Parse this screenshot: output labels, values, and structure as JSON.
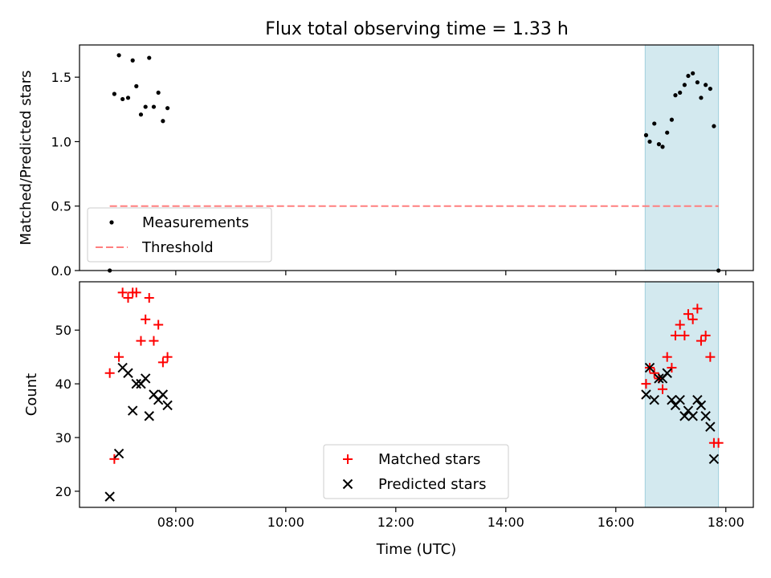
{
  "figure": {
    "title": "Flux total observing time = 1.33 h"
  },
  "chart_data": [
    {
      "type": "scatter",
      "panel": "top",
      "ylabel": "Matched/Predicted stars",
      "xlabel": "",
      "xlim": [
        "06:15",
        "18:30"
      ],
      "ylim": [
        0,
        1.75
      ],
      "xticks": [
        "08:00",
        "10:00",
        "12:00",
        "14:00",
        "16:00",
        "18:00"
      ],
      "xticklabels_visible": false,
      "yticks": [
        "0.0",
        "0.5",
        "1.0",
        "1.5"
      ],
      "grid": false,
      "legend_position": "lower-left",
      "highlight_span": {
        "x": [
          "16:32",
          "17:52"
        ],
        "color": "#d3e9ef"
      },
      "series": [
        {
          "name": "Measurements",
          "marker": "dot",
          "color": "#000000",
          "points": [
            {
              "x": "06:48",
              "y": 0.0
            },
            {
              "x": "06:53",
              "y": 1.37
            },
            {
              "x": "06:58",
              "y": 1.67
            },
            {
              "x": "07:02",
              "y": 1.33
            },
            {
              "x": "07:08",
              "y": 1.34
            },
            {
              "x": "07:13",
              "y": 1.63
            },
            {
              "x": "07:17",
              "y": 1.43
            },
            {
              "x": "07:22",
              "y": 1.21
            },
            {
              "x": "07:27",
              "y": 1.27
            },
            {
              "x": "07:31",
              "y": 1.65
            },
            {
              "x": "07:36",
              "y": 1.27
            },
            {
              "x": "07:41",
              "y": 1.38
            },
            {
              "x": "07:46",
              "y": 1.16
            },
            {
              "x": "07:51",
              "y": 1.26
            },
            {
              "x": "16:33",
              "y": 1.05
            },
            {
              "x": "16:37",
              "y": 1.0
            },
            {
              "x": "16:42",
              "y": 1.14
            },
            {
              "x": "16:47",
              "y": 0.98
            },
            {
              "x": "16:51",
              "y": 0.96
            },
            {
              "x": "16:56",
              "y": 1.07
            },
            {
              "x": "17:01",
              "y": 1.17
            },
            {
              "x": "17:05",
              "y": 1.36
            },
            {
              "x": "17:10",
              "y": 1.38
            },
            {
              "x": "17:15",
              "y": 1.44
            },
            {
              "x": "17:19",
              "y": 1.51
            },
            {
              "x": "17:24",
              "y": 1.53
            },
            {
              "x": "17:29",
              "y": 1.46
            },
            {
              "x": "17:33",
              "y": 1.34
            },
            {
              "x": "17:38",
              "y": 1.44
            },
            {
              "x": "17:43",
              "y": 1.41
            },
            {
              "x": "17:47",
              "y": 1.12
            },
            {
              "x": "17:52",
              "y": 0.0
            }
          ]
        },
        {
          "name": "Threshold",
          "style": "dashed",
          "color": "#ff7f7f",
          "points": [
            {
              "x": "06:48",
              "y": 0.5
            },
            {
              "x": "17:52",
              "y": 0.5
            }
          ]
        }
      ]
    },
    {
      "type": "scatter",
      "panel": "bottom",
      "ylabel": "Count",
      "xlabel": "Time (UTC)",
      "xlim": [
        "06:15",
        "18:30"
      ],
      "ylim": [
        17,
        59
      ],
      "xticks": [
        "08:00",
        "10:00",
        "12:00",
        "14:00",
        "16:00",
        "18:00"
      ],
      "yticks": [
        "20",
        "30",
        "40",
        "50"
      ],
      "grid": false,
      "legend_position": "lower-center",
      "highlight_span": {
        "x": [
          "16:32",
          "17:52"
        ],
        "color": "#d3e9ef"
      },
      "series": [
        {
          "name": "Matched stars",
          "marker": "plus",
          "color": "#ff0000",
          "points": [
            {
              "x": "06:48",
              "y": 42
            },
            {
              "x": "06:53",
              "y": 26
            },
            {
              "x": "06:58",
              "y": 45
            },
            {
              "x": "07:02",
              "y": 57
            },
            {
              "x": "07:08",
              "y": 56
            },
            {
              "x": "07:13",
              "y": 57
            },
            {
              "x": "07:17",
              "y": 57
            },
            {
              "x": "07:22",
              "y": 48
            },
            {
              "x": "07:27",
              "y": 52
            },
            {
              "x": "07:31",
              "y": 56
            },
            {
              "x": "07:36",
              "y": 48
            },
            {
              "x": "07:41",
              "y": 51
            },
            {
              "x": "07:46",
              "y": 44
            },
            {
              "x": "07:51",
              "y": 45
            },
            {
              "x": "16:33",
              "y": 40
            },
            {
              "x": "16:37",
              "y": 43
            },
            {
              "x": "16:42",
              "y": 42
            },
            {
              "x": "16:47",
              "y": 41
            },
            {
              "x": "16:51",
              "y": 39
            },
            {
              "x": "16:56",
              "y": 45
            },
            {
              "x": "17:01",
              "y": 43
            },
            {
              "x": "17:05",
              "y": 49
            },
            {
              "x": "17:10",
              "y": 51
            },
            {
              "x": "17:15",
              "y": 49
            },
            {
              "x": "17:19",
              "y": 53
            },
            {
              "x": "17:24",
              "y": 52
            },
            {
              "x": "17:29",
              "y": 54
            },
            {
              "x": "17:33",
              "y": 48
            },
            {
              "x": "17:38",
              "y": 49
            },
            {
              "x": "17:43",
              "y": 45
            },
            {
              "x": "17:47",
              "y": 29
            },
            {
              "x": "17:52",
              "y": 29
            }
          ]
        },
        {
          "name": "Predicted stars",
          "marker": "x",
          "color": "#000000",
          "points": [
            {
              "x": "06:48",
              "y": 19
            },
            {
              "x": "06:58",
              "y": 27
            },
            {
              "x": "07:02",
              "y": 43
            },
            {
              "x": "07:08",
              "y": 42
            },
            {
              "x": "07:13",
              "y": 35
            },
            {
              "x": "07:17",
              "y": 40
            },
            {
              "x": "07:22",
              "y": 40
            },
            {
              "x": "07:27",
              "y": 41
            },
            {
              "x": "07:31",
              "y": 34
            },
            {
              "x": "07:36",
              "y": 38
            },
            {
              "x": "07:41",
              "y": 37
            },
            {
              "x": "07:46",
              "y": 38
            },
            {
              "x": "07:51",
              "y": 36
            },
            {
              "x": "16:33",
              "y": 38
            },
            {
              "x": "16:37",
              "y": 43
            },
            {
              "x": "16:42",
              "y": 37
            },
            {
              "x": "16:47",
              "y": 41
            },
            {
              "x": "16:51",
              "y": 41
            },
            {
              "x": "16:56",
              "y": 42
            },
            {
              "x": "17:01",
              "y": 37
            },
            {
              "x": "17:05",
              "y": 36
            },
            {
              "x": "17:10",
              "y": 37
            },
            {
              "x": "17:15",
              "y": 34
            },
            {
              "x": "17:19",
              "y": 35
            },
            {
              "x": "17:24",
              "y": 34
            },
            {
              "x": "17:29",
              "y": 37
            },
            {
              "x": "17:33",
              "y": 36
            },
            {
              "x": "17:38",
              "y": 34
            },
            {
              "x": "17:43",
              "y": 32
            },
            {
              "x": "17:47",
              "y": 26
            }
          ]
        }
      ]
    }
  ]
}
